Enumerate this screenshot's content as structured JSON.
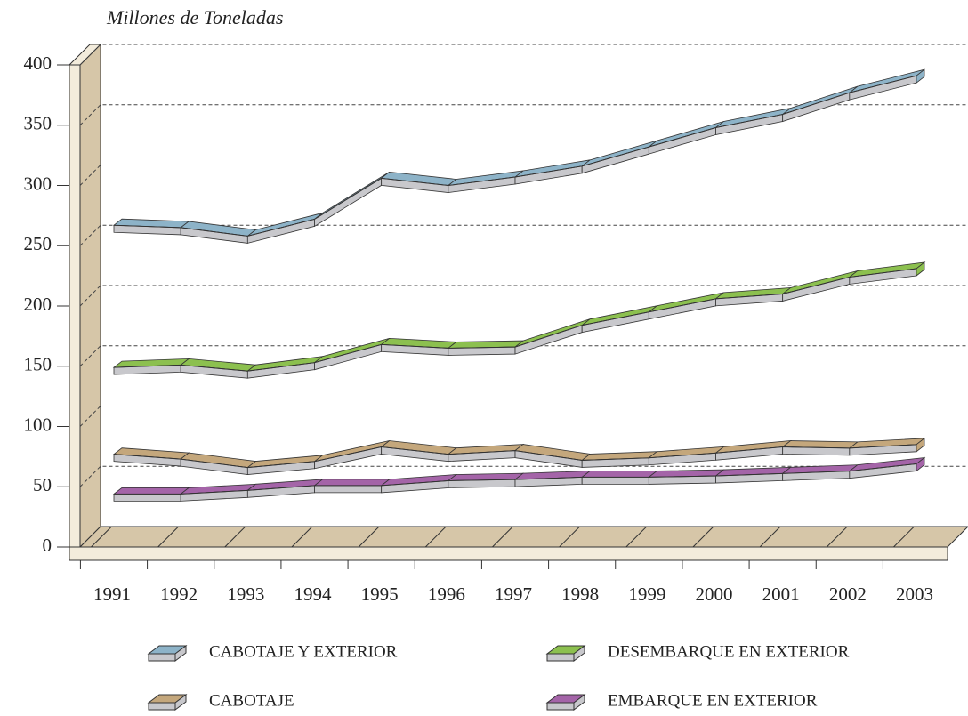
{
  "chart_data": {
    "type": "line3d",
    "y_axis_label": "Millones de Toneladas",
    "categories": [
      "1991",
      "1992",
      "1993",
      "1994",
      "1995",
      "1996",
      "1997",
      "1998",
      "1999",
      "2000",
      "2001",
      "2002",
      "2003"
    ],
    "ylim": [
      0,
      400
    ],
    "yticks": [
      0,
      50,
      100,
      150,
      200,
      250,
      300,
      350,
      400
    ],
    "grid": true,
    "series": [
      {
        "name": "CABOTAJE Y EXTERIOR",
        "color": "#8db3c8",
        "values": [
          267,
          265,
          258,
          272,
          306,
          300,
          307,
          316,
          332,
          348,
          359,
          377,
          391
        ]
      },
      {
        "name": "DESEMBARQUE EN EXTERIOR",
        "color": "#8cc04f",
        "values": [
          149,
          151,
          146,
          153,
          168,
          165,
          166,
          184,
          195,
          206,
          210,
          224,
          231
        ]
      },
      {
        "name": "CABOTAJE",
        "color": "#c4a77c",
        "values": [
          77,
          73,
          66,
          71,
          83,
          77,
          80,
          72,
          74,
          78,
          83,
          82,
          85
        ]
      },
      {
        "name": "EMBARQUE EN EXTERIOR",
        "color": "#a464a8",
        "values": [
          44,
          44,
          47,
          51,
          51,
          55,
          56,
          58,
          58,
          59,
          61,
          63,
          69
        ]
      }
    ]
  }
}
